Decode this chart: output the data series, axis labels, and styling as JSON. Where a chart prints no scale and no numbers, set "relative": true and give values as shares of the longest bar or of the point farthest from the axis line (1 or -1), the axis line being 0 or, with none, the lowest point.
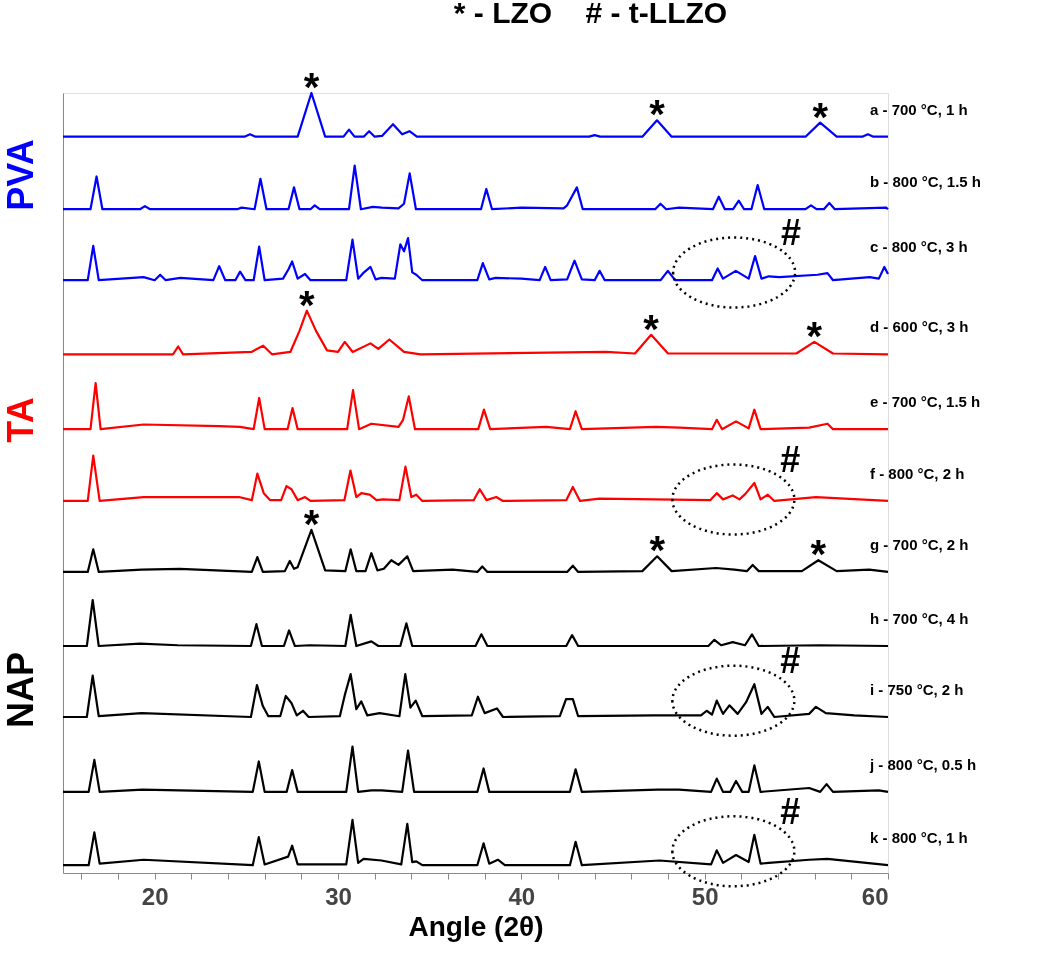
{
  "chart_data": {
    "type": "line",
    "relative": true,
    "title": "* - LZO    # - t-LLZO",
    "xlabel": "Angle (2θ)",
    "xlim": [
      15,
      60
    ],
    "xticks": [
      {
        "value": 16,
        "label": null
      },
      {
        "value": 18,
        "label": null
      },
      20,
      {
        "value": 22,
        "label": null
      },
      {
        "value": 24,
        "label": null
      },
      {
        "value": 26,
        "label": null
      },
      {
        "value": 28,
        "label": null
      },
      30,
      {
        "value": 32,
        "label": null
      },
      {
        "value": 34,
        "label": null
      },
      {
        "value": 36,
        "label": null
      },
      {
        "value": 38,
        "label": null
      },
      40,
      {
        "value": 42,
        "label": null
      },
      {
        "value": 44,
        "label": null
      },
      {
        "value": 46,
        "label": null
      },
      {
        "value": 48,
        "label": null
      },
      50,
      {
        "value": 52,
        "label": null
      },
      {
        "value": 54,
        "label": null
      },
      {
        "value": 56,
        "label": null
      },
      {
        "value": 58,
        "label": null
      },
      60
    ],
    "tick_labels": "x",
    "line_style": "solid",
    "series": [
      {
        "name": "a - 700 °C, 1 h",
        "color": "#0000ff",
        "x": [
          15,
          24.9,
          25.2,
          25.5,
          27.8,
          28.55,
          29.3,
          30.3,
          30.6,
          30.9,
          31.4,
          31.7,
          32.0,
          32.4,
          33.0,
          33.5,
          33.9,
          34.3,
          43.7,
          44.0,
          44.3,
          46.6,
          47.4,
          48.2,
          55.5,
          56.3,
          57.2,
          58.6,
          58.9,
          59.2,
          60
        ],
        "values": [
          0.944,
          0.944,
          0.947,
          0.944,
          0.944,
          1.0,
          0.944,
          0.944,
          0.953,
          0.944,
          0.944,
          0.951,
          0.944,
          0.945,
          0.96,
          0.947,
          0.951,
          0.944,
          0.944,
          0.946,
          0.944,
          0.944,
          0.965,
          0.944,
          0.944,
          0.962,
          0.944,
          0.944,
          0.947,
          0.944,
          0.944
        ]
      },
      {
        "name": "b - 800 °C, 1.5 h",
        "color": "#0000ff",
        "x": [
          15,
          16.5,
          16.83,
          17.15,
          19.2,
          19.47,
          19.75,
          24.5,
          24.74,
          25.45,
          25.77,
          26.1,
          27.3,
          27.6,
          27.9,
          28.5,
          28.73,
          29.0,
          30.6,
          30.91,
          31.25,
          31.9,
          32.4,
          33.3,
          33.6,
          33.91,
          34.25,
          37.8,
          38.09,
          38.4,
          40.0,
          42.3,
          42.5,
          43.03,
          43.35,
          47.3,
          47.59,
          47.9,
          48.6,
          50.45,
          50.77,
          51.1,
          51.55,
          51.86,
          52.15,
          52.55,
          52.89,
          53.25,
          55.5,
          55.8,
          56.1,
          56.5,
          56.8,
          57.1,
          59.9,
          60
        ],
        "values": [
          0.851,
          0.851,
          0.893,
          0.851,
          0.851,
          0.855,
          0.851,
          0.851,
          0.853,
          0.851,
          0.89,
          0.851,
          0.851,
          0.879,
          0.851,
          0.851,
          0.856,
          0.851,
          0.851,
          0.907,
          0.851,
          0.854,
          0.853,
          0.852,
          0.858,
          0.897,
          0.851,
          0.851,
          0.877,
          0.851,
          0.853,
          0.852,
          0.856,
          0.879,
          0.851,
          0.851,
          0.858,
          0.851,
          0.853,
          0.851,
          0.867,
          0.851,
          0.851,
          0.862,
          0.851,
          0.851,
          0.882,
          0.851,
          0.851,
          0.856,
          0.851,
          0.851,
          0.859,
          0.851,
          0.853,
          0.851
        ]
      },
      {
        "name": "c - 800 °C, 3 h",
        "color": "#0000ff",
        "x": [
          15,
          16.35,
          16.65,
          16.95,
          19.4,
          20.0,
          20.3,
          20.6,
          21.4,
          23.2,
          23.52,
          23.85,
          24.4,
          24.66,
          24.95,
          25.4,
          25.7,
          26.0,
          27.0,
          27.3,
          27.5,
          27.8,
          28.2,
          28.5,
          30.45,
          30.79,
          31.1,
          31.37,
          31.77,
          32.05,
          32.37,
          33.1,
          33.4,
          33.6,
          33.82,
          34.05,
          34.27,
          34.6,
          37.6,
          37.9,
          38.25,
          38.6,
          40.0,
          41.0,
          41.3,
          41.6,
          42.5,
          42.9,
          43.3,
          44.0,
          44.27,
          44.55,
          47.6,
          47.99,
          48.4,
          50.4,
          50.71,
          51.0,
          51.7,
          52.4,
          52.75,
          53.1,
          53.5,
          54.07,
          56.16,
          56.7,
          57.0,
          59.0,
          59.5,
          59.8,
          60
        ],
        "values": [
          0.76,
          0.76,
          0.804,
          0.76,
          0.764,
          0.76,
          0.767,
          0.76,
          0.763,
          0.76,
          0.778,
          0.76,
          0.76,
          0.771,
          0.76,
          0.76,
          0.803,
          0.76,
          0.762,
          0.774,
          0.784,
          0.762,
          0.768,
          0.76,
          0.76,
          0.812,
          0.762,
          0.769,
          0.777,
          0.761,
          0.763,
          0.762,
          0.806,
          0.797,
          0.814,
          0.77,
          0.767,
          0.76,
          0.76,
          0.782,
          0.761,
          0.763,
          0.762,
          0.76,
          0.777,
          0.76,
          0.761,
          0.785,
          0.761,
          0.76,
          0.772,
          0.76,
          0.76,
          0.772,
          0.76,
          0.76,
          0.775,
          0.762,
          0.772,
          0.762,
          0.791,
          0.762,
          0.765,
          0.764,
          0.767,
          0.769,
          0.76,
          0.764,
          0.762,
          0.777,
          0.768
        ]
      },
      {
        "name": "d - 600 °C, 3 h",
        "color": "#ff0000",
        "x": [
          15,
          21.0,
          21.28,
          21.55,
          25.28,
          25.92,
          26.4,
          27.4,
          27.9,
          28.3,
          28.8,
          29.4,
          30.0,
          30.37,
          30.8,
          31.77,
          32.2,
          32.8,
          33.6,
          34.5,
          44.63,
          46.2,
          47.08,
          48.0,
          55.0,
          55.98,
          57.0,
          60
        ],
        "values": [
          0.665,
          0.665,
          0.675,
          0.665,
          0.668,
          0.676,
          0.665,
          0.668,
          0.695,
          0.721,
          0.695,
          0.67,
          0.668,
          0.681,
          0.668,
          0.679,
          0.672,
          0.684,
          0.668,
          0.665,
          0.668,
          0.666,
          0.69,
          0.666,
          0.666,
          0.681,
          0.666,
          0.665
        ]
      },
      {
        "name": "e - 700 °C, 1.5 h",
        "color": "#ff0000",
        "x": [
          15,
          16.5,
          16.78,
          17.05,
          19.4,
          23.52,
          24.65,
          25.4,
          25.7,
          26.0,
          27.25,
          27.52,
          27.8,
          30.5,
          30.82,
          31.15,
          31.82,
          33.3,
          33.55,
          33.86,
          34.2,
          37.65,
          37.96,
          38.3,
          41.36,
          42.65,
          42.96,
          43.3,
          47.35,
          48.62,
          50.4,
          50.66,
          50.95,
          51.71,
          52.4,
          52.71,
          53.05,
          55.7,
          56.7,
          57.0,
          60
        ],
        "values": [
          0.569,
          0.569,
          0.628,
          0.569,
          0.575,
          0.573,
          0.572,
          0.569,
          0.609,
          0.569,
          0.569,
          0.596,
          0.569,
          0.569,
          0.619,
          0.569,
          0.576,
          0.572,
          0.581,
          0.611,
          0.569,
          0.569,
          0.594,
          0.569,
          0.572,
          0.569,
          0.592,
          0.569,
          0.572,
          0.571,
          0.569,
          0.581,
          0.569,
          0.579,
          0.57,
          0.594,
          0.569,
          0.571,
          0.576,
          0.569,
          0.569
        ]
      },
      {
        "name": "f - 800 °C, 2 h",
        "color": "#ff0000",
        "x": [
          15,
          16.35,
          16.65,
          17.0,
          19.4,
          24.6,
          25.3,
          25.6,
          25.95,
          26.3,
          26.9,
          27.19,
          27.46,
          27.8,
          28.2,
          28.5,
          30.35,
          30.68,
          31.0,
          31.27,
          31.73,
          32.1,
          32.46,
          33.35,
          33.68,
          34.0,
          34.27,
          34.6,
          37.4,
          37.73,
          38.1,
          38.63,
          39.0,
          42.45,
          42.81,
          43.2,
          44.26,
          50.3,
          50.66,
          51.0,
          51.53,
          51.9,
          52.22,
          52.71,
          53.05,
          53.44,
          53.8,
          56.07,
          60
        ],
        "values": [
          0.477,
          0.477,
          0.535,
          0.477,
          0.482,
          0.482,
          0.478,
          0.512,
          0.487,
          0.478,
          0.478,
          0.496,
          0.492,
          0.478,
          0.482,
          0.477,
          0.478,
          0.516,
          0.482,
          0.487,
          0.485,
          0.478,
          0.479,
          0.478,
          0.521,
          0.482,
          0.485,
          0.477,
          0.478,
          0.492,
          0.478,
          0.482,
          0.477,
          0.478,
          0.495,
          0.477,
          0.48,
          0.478,
          0.487,
          0.479,
          0.484,
          0.479,
          0.486,
          0.5,
          0.479,
          0.485,
          0.477,
          0.482,
          0.477
        ]
      },
      {
        "name": "g - 700 °C, 2 h",
        "color": "#000000",
        "x": [
          15,
          16.35,
          16.65,
          16.95,
          19.29,
          21.37,
          25.3,
          25.6,
          25.9,
          27.1,
          27.37,
          27.6,
          27.8,
          28.55,
          29.3,
          30.4,
          30.69,
          31.0,
          31.5,
          31.82,
          32.15,
          32.5,
          32.91,
          33.3,
          33.78,
          34.1,
          36.25,
          37.6,
          37.87,
          38.15,
          42.5,
          42.81,
          43.1,
          46.6,
          47.41,
          48.2,
          50.62,
          51.62,
          52.3,
          52.62,
          52.95,
          55.3,
          56.2,
          57.2,
          58.98,
          60
        ],
        "values": [
          0.386,
          0.386,
          0.415,
          0.386,
          0.389,
          0.39,
          0.386,
          0.405,
          0.386,
          0.387,
          0.4,
          0.39,
          0.392,
          0.44,
          0.388,
          0.387,
          0.415,
          0.387,
          0.387,
          0.41,
          0.388,
          0.39,
          0.401,
          0.395,
          0.406,
          0.387,
          0.389,
          0.386,
          0.393,
          0.386,
          0.386,
          0.394,
          0.386,
          0.387,
          0.406,
          0.387,
          0.391,
          0.389,
          0.387,
          0.395,
          0.387,
          0.387,
          0.401,
          0.387,
          0.389,
          0.386
        ]
      },
      {
        "name": "h - 700 °C, 4 h",
        "color": "#000000",
        "x": [
          15,
          16.3,
          16.62,
          16.95,
          19.2,
          21.27,
          25.25,
          25.55,
          25.85,
          27.05,
          27.33,
          27.65,
          28.46,
          30.4,
          30.69,
          31.0,
          31.82,
          32.2,
          33.4,
          33.73,
          34.05,
          37.5,
          37.82,
          38.15,
          42.45,
          42.77,
          43.1,
          47.26,
          50.2,
          50.53,
          50.9,
          51.53,
          52.2,
          52.58,
          52.95,
          56.25,
          60
        ],
        "values": [
          0.291,
          0.291,
          0.35,
          0.291,
          0.294,
          0.292,
          0.291,
          0.319,
          0.291,
          0.291,
          0.311,
          0.291,
          0.292,
          0.291,
          0.331,
          0.291,
          0.297,
          0.291,
          0.291,
          0.32,
          0.291,
          0.291,
          0.306,
          0.291,
          0.291,
          0.305,
          0.291,
          0.291,
          0.291,
          0.299,
          0.292,
          0.296,
          0.292,
          0.306,
          0.291,
          0.292,
          0.291
        ]
      },
      {
        "name": "i - 750 °C, 2 h",
        "color": "#000000",
        "x": [
          15,
          16.3,
          16.62,
          16.95,
          19.29,
          25.25,
          25.58,
          25.9,
          26.2,
          26.85,
          27.15,
          27.46,
          27.75,
          28.09,
          28.4,
          30.1,
          30.37,
          30.69,
          31.0,
          31.27,
          31.6,
          32.27,
          33.35,
          33.67,
          33.95,
          34.24,
          34.6,
          37.3,
          37.63,
          38.0,
          38.67,
          39.0,
          42.1,
          42.44,
          42.81,
          43.1,
          47.26,
          49.8,
          50.11,
          50.4,
          50.66,
          51.0,
          51.35,
          51.8,
          52.26,
          52.71,
          53.1,
          53.44,
          53.8,
          55.7,
          56.07,
          56.61,
          58.16,
          60
        ],
        "values": [
          0.2,
          0.2,
          0.253,
          0.201,
          0.205,
          0.2,
          0.241,
          0.214,
          0.201,
          0.201,
          0.227,
          0.218,
          0.202,
          0.208,
          0.2,
          0.201,
          0.228,
          0.255,
          0.21,
          0.22,
          0.202,
          0.205,
          0.201,
          0.255,
          0.212,
          0.221,
          0.201,
          0.202,
          0.226,
          0.205,
          0.211,
          0.2,
          0.201,
          0.223,
          0.223,
          0.201,
          0.202,
          0.202,
          0.208,
          0.203,
          0.221,
          0.204,
          0.215,
          0.204,
          0.219,
          0.242,
          0.204,
          0.213,
          0.2,
          0.204,
          0.213,
          0.205,
          0.202,
          0.2
        ]
      },
      {
        "name": "j - 800 °C, 0.5 h",
        "color": "#000000",
        "x": [
          15,
          16.4,
          16.71,
          17.0,
          19.34,
          25.35,
          25.68,
          26.0,
          27.2,
          27.5,
          27.8,
          30.45,
          30.79,
          31.1,
          31.82,
          32.37,
          33.5,
          33.82,
          34.15,
          37.6,
          37.94,
          38.25,
          42.65,
          42.96,
          43.3,
          47.44,
          48.59,
          50.35,
          50.66,
          51.0,
          51.4,
          51.71,
          52.05,
          52.4,
          52.71,
          53.05,
          55.7,
          56.3,
          56.65,
          57.0,
          59.5,
          60
        ],
        "values": [
          0.104,
          0.104,
          0.145,
          0.104,
          0.107,
          0.104,
          0.143,
          0.104,
          0.104,
          0.132,
          0.104,
          0.104,
          0.162,
          0.104,
          0.106,
          0.106,
          0.104,
          0.157,
          0.104,
          0.104,
          0.134,
          0.104,
          0.104,
          0.133,
          0.104,
          0.107,
          0.107,
          0.104,
          0.121,
          0.104,
          0.104,
          0.118,
          0.104,
          0.104,
          0.138,
          0.104,
          0.109,
          0.104,
          0.114,
          0.104,
          0.106,
          0.104
        ]
      },
      {
        "name": "k - 800 °C, 1 h",
        "color": "#000000",
        "x": [
          15,
          16.4,
          16.71,
          17.0,
          19.4,
          25.35,
          25.68,
          26.0,
          27.28,
          27.5,
          27.8,
          30.45,
          30.79,
          31.1,
          31.4,
          32.37,
          33.45,
          33.78,
          34.05,
          34.27,
          34.6,
          37.6,
          37.94,
          38.25,
          38.72,
          39.1,
          42.65,
          42.96,
          43.3,
          47.53,
          50.35,
          50.66,
          51.0,
          51.71,
          52.4,
          52.71,
          53.05,
          53.5,
          55.7,
          56.7,
          60
        ],
        "values": [
          0.01,
          0.01,
          0.052,
          0.012,
          0.017,
          0.01,
          0.046,
          0.011,
          0.021,
          0.035,
          0.011,
          0.011,
          0.068,
          0.013,
          0.018,
          0.016,
          0.011,
          0.063,
          0.014,
          0.015,
          0.01,
          0.01,
          0.038,
          0.012,
          0.017,
          0.01,
          0.01,
          0.04,
          0.01,
          0.016,
          0.011,
          0.029,
          0.013,
          0.023,
          0.014,
          0.049,
          0.012,
          0.013,
          0.017,
          0.018,
          0.01
        ]
      }
    ],
    "annotations": [
      "PVA",
      "TA",
      "NAP",
      {
        "text": "*",
        "x": 28.55,
        "y": 1.0
      },
      {
        "text": "*",
        "x": 47.4,
        "y": 0.965
      },
      {
        "text": "*",
        "x": 56.3,
        "y": 0.962
      },
      {
        "text": "*",
        "x": 28.3,
        "y": 0.721
      },
      {
        "text": "*",
        "x": 47.08,
        "y": 0.69
      },
      {
        "text": "*",
        "x": 55.98,
        "y": 0.681
      },
      {
        "text": "*",
        "x": 28.55,
        "y": 0.44
      },
      {
        "text": "*",
        "x": 47.41,
        "y": 0.406
      },
      {
        "text": "*",
        "x": 56.2,
        "y": 0.401
      },
      {
        "text": "#",
        "x": 52.75,
        "y": 0.791
      },
      {
        "text": "#",
        "x": 52.71,
        "y": 0.5
      },
      {
        "text": "#",
        "x": 52.71,
        "y": 0.242
      },
      {
        "text": "#",
        "x": 52.71,
        "y": 0.049
      }
    ]
  }
}
